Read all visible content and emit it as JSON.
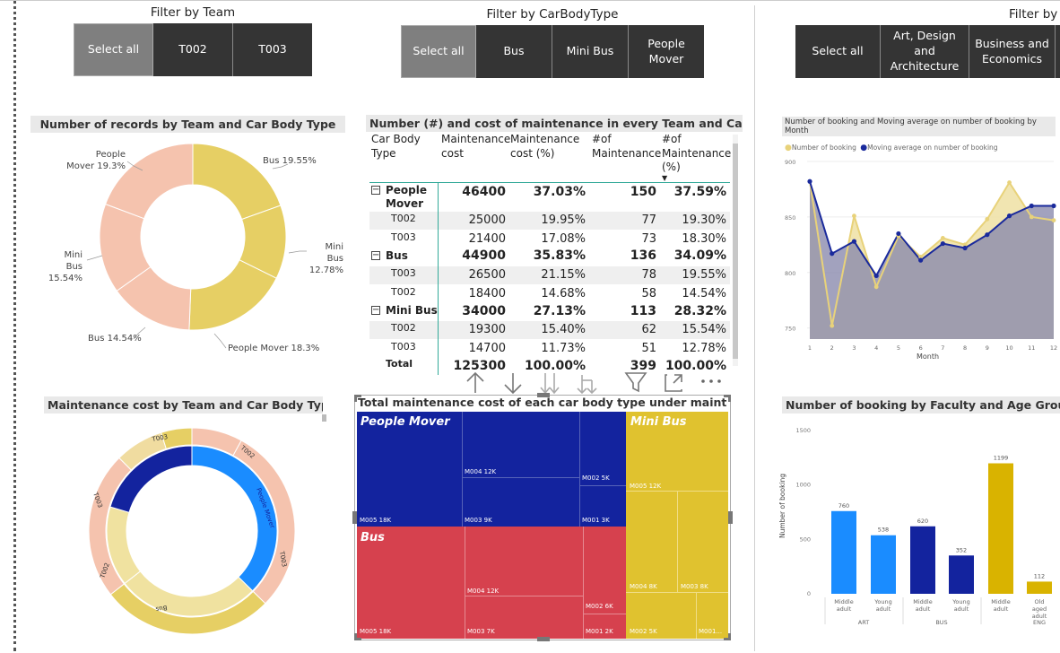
{
  "slicers": {
    "team": {
      "title": "Filter by Team",
      "items": [
        "Select all",
        "T002",
        "T003"
      ]
    },
    "carbody": {
      "title": "Filter by CarBodyType",
      "items": [
        "Select all",
        "Bus",
        "Mini Bus",
        "People Mover"
      ]
    },
    "faculty": {
      "title": "Filter by",
      "items": [
        "Select all",
        "Art, Design and Architecture",
        "Business and Economics"
      ]
    }
  },
  "donut1": {
    "title": "Number of records by Team and Car Body Type",
    "labels": [
      "Bus 19.55%",
      "Mini Bus 12.78%",
      "People Mover 18.3%",
      "Bus 14.54%",
      "Mini Bus 15.54%",
      "People Mover 19.3%"
    ]
  },
  "table": {
    "title": "Number (#) and cost of maintenance in every Team and Car Body Type",
    "headers": [
      "Car Body Type",
      "Maintenance cost",
      "Maintenance cost (%)",
      "#of Maintenance",
      "#of Maintenance (%)"
    ],
    "groups": [
      {
        "name": "People Mover",
        "cost": "46400",
        "cost_pct": "37.03%",
        "n": "150",
        "n_pct": "37.59%",
        "rows": [
          [
            "T002",
            "25000",
            "19.95%",
            "77",
            "19.30%"
          ],
          [
            "T003",
            "21400",
            "17.08%",
            "73",
            "18.30%"
          ]
        ]
      },
      {
        "name": "Bus",
        "cost": "44900",
        "cost_pct": "35.83%",
        "n": "136",
        "n_pct": "34.09%",
        "rows": [
          [
            "T003",
            "26500",
            "21.15%",
            "78",
            "19.55%"
          ],
          [
            "T002",
            "18400",
            "14.68%",
            "58",
            "14.54%"
          ]
        ]
      },
      {
        "name": "Mini Bus",
        "cost": "34000",
        "cost_pct": "27.13%",
        "n": "113",
        "n_pct": "28.32%",
        "rows": [
          [
            "T002",
            "19300",
            "15.40%",
            "62",
            "15.54%"
          ],
          [
            "T003",
            "14700",
            "11.73%",
            "51",
            "12.78%"
          ]
        ]
      }
    ],
    "total_label": "Total",
    "total": [
      "125300",
      "100.00%",
      "399",
      "100.00%"
    ]
  },
  "linechart": {
    "title": "Number of booking and Moving average on number of booking by Month",
    "legend": [
      "Number of booking",
      "Moving average on number of booking"
    ],
    "xlabel": "Month",
    "colors": {
      "booking": "#e8d27a",
      "ma": "#1a2a9c",
      "area": "#9a9ab8"
    }
  },
  "donut2": {
    "title": "Maintenance cost by Team and Car Body Type",
    "outer_labels": [
      "T003",
      "T002",
      "T003",
      "T002",
      "T003"
    ],
    "inner_labels": [
      "People Mover",
      "Bus"
    ]
  },
  "treemap": {
    "title": "Total maintenance cost of each car body type under maintenance type",
    "groups": [
      {
        "name": "People Mover",
        "color": "#13239e",
        "cells": [
          "M005 18K",
          "M004 12K",
          "M003 9K",
          "M002 5K",
          "M001 3K"
        ]
      },
      {
        "name": "Bus",
        "color": "#d6414e",
        "cells": [
          "M005 18K",
          "M004 12K",
          "M003 7K",
          "M002 6K",
          "M001 2K"
        ]
      },
      {
        "name": "Mini Bus",
        "color": "#e0c22f",
        "cells": [
          "M005 12K",
          "M004 8K",
          "M003 8K",
          "M002 5K",
          "M001..."
        ]
      }
    ]
  },
  "barchart": {
    "title": "Number of booking by Faculty and Age Group",
    "ylabel": "Number of booking",
    "colors": {
      "light": "#1a8cff",
      "dark": "#13239e",
      "gold": "#d9b300"
    }
  },
  "chart_data": [
    {
      "type": "line",
      "title": "Number of booking and Moving average on number of booking by Month",
      "xlabel": "Month",
      "ylabel": "",
      "x": [
        1,
        2,
        3,
        4,
        5,
        6,
        7,
        8,
        9,
        10,
        11,
        12
      ],
      "ylim": [
        740,
        900
      ],
      "yticks": [
        750,
        800,
        850,
        900
      ],
      "series": [
        {
          "name": "Number of booking",
          "values": [
            882,
            752,
            851,
            787,
            833,
            814,
            831,
            825,
            848,
            881,
            850,
            847
          ]
        },
        {
          "name": "Moving average on number of booking",
          "values": [
            882,
            817,
            828,
            797,
            835,
            811,
            826,
            822,
            834,
            851,
            860,
            860
          ]
        }
      ]
    },
    {
      "type": "bar",
      "title": "Number of booking by Faculty and Age Group",
      "ylabel": "Number of booking",
      "categories": [
        "Middle adult",
        "Young adult",
        "Middle adult",
        "Young adult",
        "Middle adult",
        "Old aged adult"
      ],
      "groups": [
        "ART",
        "ART",
        "BUS",
        "BUS",
        "ENG",
        "ENG"
      ],
      "values": [
        760,
        538,
        620,
        352,
        1199,
        112
      ],
      "ylim": [
        0,
        1500
      ],
      "yticks": [
        0,
        500,
        1000,
        1500
      ]
    },
    {
      "type": "pie",
      "title": "Number of records by Team and Car Body Type",
      "labels": [
        "Bus",
        "Mini Bus",
        "People Mover",
        "Bus",
        "Mini Bus",
        "People Mover"
      ],
      "values": [
        19.55,
        12.78,
        18.3,
        14.54,
        15.54,
        19.3
      ]
    }
  ]
}
